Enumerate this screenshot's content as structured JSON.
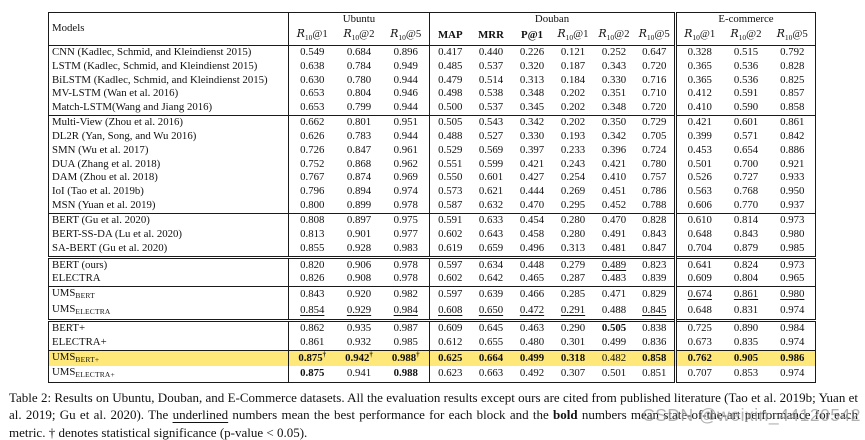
{
  "table": {
    "models_header": "Models",
    "dataset_groups": [
      {
        "label": "Ubuntu",
        "cols": 3
      },
      {
        "label": "Douban",
        "cols": 6
      },
      {
        "label": "E-commerce",
        "cols": 3
      }
    ],
    "subheaders": [
      {
        "base": "R",
        "sub": "10",
        "rest": "@1"
      },
      {
        "base": "R",
        "sub": "10",
        "rest": "@2"
      },
      {
        "base": "R",
        "sub": "10",
        "rest": "@5"
      },
      {
        "text": "MAP"
      },
      {
        "text": "MRR"
      },
      {
        "text": "P@1"
      },
      {
        "base": "R",
        "sub": "10",
        "rest": "@1"
      },
      {
        "base": "R",
        "sub": "10",
        "rest": "@2"
      },
      {
        "base": "R",
        "sub": "10",
        "rest": "@5"
      },
      {
        "base": "R",
        "sub": "10",
        "rest": "@1"
      },
      {
        "base": "R",
        "sub": "10",
        "rest": "@2"
      },
      {
        "base": "R",
        "sub": "10",
        "rest": "@5"
      }
    ],
    "blocks": [
      {
        "double_top": false,
        "rows": [
          {
            "model": "CNN (Kadlec, Schmid, and Kleindienst 2015)",
            "sub": "",
            "values": [
              "0.549",
              "0.684",
              "0.896",
              "0.417",
              "0.440",
              "0.226",
              "0.121",
              "0.252",
              "0.647",
              "0.328",
              "0.515",
              "0.792"
            ],
            "bold": [],
            "underline": [],
            "dagger": [],
            "highlight": false
          },
          {
            "model": "LSTM (Kadlec, Schmid, and Kleindienst 2015)",
            "sub": "",
            "values": [
              "0.638",
              "0.784",
              "0.949",
              "0.485",
              "0.537",
              "0.320",
              "0.187",
              "0.343",
              "0.720",
              "0.365",
              "0.536",
              "0.828"
            ],
            "bold": [],
            "underline": [],
            "dagger": [],
            "highlight": false
          },
          {
            "model": "BiLSTM (Kadlec, Schmid, and Kleindienst 2015)",
            "sub": "",
            "values": [
              "0.630",
              "0.780",
              "0.944",
              "0.479",
              "0.514",
              "0.313",
              "0.184",
              "0.330",
              "0.716",
              "0.365",
              "0.536",
              "0.825"
            ],
            "bold": [],
            "underline": [],
            "dagger": [],
            "highlight": false
          },
          {
            "model": "MV-LSTM (Wan et al. 2016)",
            "sub": "",
            "values": [
              "0.653",
              "0.804",
              "0.946",
              "0.498",
              "0.538",
              "0.348",
              "0.202",
              "0.351",
              "0.710",
              "0.412",
              "0.591",
              "0.857"
            ],
            "bold": [],
            "underline": [],
            "dagger": [],
            "highlight": false
          },
          {
            "model": "Match-LSTM(Wang and Jiang 2016)",
            "sub": "",
            "values": [
              "0.653",
              "0.799",
              "0.944",
              "0.500",
              "0.537",
              "0.345",
              "0.202",
              "0.348",
              "0.720",
              "0.410",
              "0.590",
              "0.858"
            ],
            "bold": [],
            "underline": [],
            "dagger": [],
            "highlight": false
          }
        ]
      },
      {
        "double_top": false,
        "rows": [
          {
            "model": "Multi-View (Zhou et al. 2016)",
            "sub": "",
            "values": [
              "0.662",
              "0.801",
              "0.951",
              "0.505",
              "0.543",
              "0.342",
              "0.202",
              "0.350",
              "0.729",
              "0.421",
              "0.601",
              "0.861"
            ],
            "bold": [],
            "underline": [],
            "dagger": [],
            "highlight": false
          },
          {
            "model": "DL2R (Yan, Song, and Wu 2016)",
            "sub": "",
            "values": [
              "0.626",
              "0.783",
              "0.944",
              "0.488",
              "0.527",
              "0.330",
              "0.193",
              "0.342",
              "0.705",
              "0.399",
              "0.571",
              "0.842"
            ],
            "bold": [],
            "underline": [],
            "dagger": [],
            "highlight": false
          },
          {
            "model": "SMN (Wu et al. 2017)",
            "sub": "",
            "values": [
              "0.726",
              "0.847",
              "0.961",
              "0.529",
              "0.569",
              "0.397",
              "0.233",
              "0.396",
              "0.724",
              "0.453",
              "0.654",
              "0.886"
            ],
            "bold": [],
            "underline": [],
            "dagger": [],
            "highlight": false
          },
          {
            "model": "DUA (Zhang et al. 2018)",
            "sub": "",
            "values": [
              "0.752",
              "0.868",
              "0.962",
              "0.551",
              "0.599",
              "0.421",
              "0.243",
              "0.421",
              "0.780",
              "0.501",
              "0.700",
              "0.921"
            ],
            "bold": [],
            "underline": [],
            "dagger": [],
            "highlight": false
          },
          {
            "model": "DAM (Zhou et al. 2018)",
            "sub": "",
            "values": [
              "0.767",
              "0.874",
              "0.969",
              "0.550",
              "0.601",
              "0.427",
              "0.254",
              "0.410",
              "0.757",
              "0.526",
              "0.727",
              "0.933"
            ],
            "bold": [],
            "underline": [],
            "dagger": [],
            "highlight": false
          },
          {
            "model": "IoI (Tao et al. 2019b)",
            "sub": "",
            "values": [
              "0.796",
              "0.894",
              "0.974",
              "0.573",
              "0.621",
              "0.444",
              "0.269",
              "0.451",
              "0.786",
              "0.563",
              "0.768",
              "0.950"
            ],
            "bold": [],
            "underline": [],
            "dagger": [],
            "highlight": false
          },
          {
            "model": "MSN (Yuan et al. 2019)",
            "sub": "",
            "values": [
              "0.800",
              "0.899",
              "0.978",
              "0.587",
              "0.632",
              "0.470",
              "0.295",
              "0.452",
              "0.788",
              "0.606",
              "0.770",
              "0.937"
            ],
            "bold": [],
            "underline": [],
            "dagger": [],
            "highlight": false
          }
        ]
      },
      {
        "double_top": false,
        "rows": [
          {
            "model": "BERT (Gu et al. 2020)",
            "sub": "",
            "values": [
              "0.808",
              "0.897",
              "0.975",
              "0.591",
              "0.633",
              "0.454",
              "0.280",
              "0.470",
              "0.828",
              "0.610",
              "0.814",
              "0.973"
            ],
            "bold": [],
            "underline": [],
            "dagger": [],
            "highlight": false
          },
          {
            "model": "BERT-SS-DA (Lu et al. 2020)",
            "sub": "",
            "values": [
              "0.813",
              "0.901",
              "0.977",
              "0.602",
              "0.643",
              "0.458",
              "0.280",
              "0.491",
              "0.843",
              "0.648",
              "0.843",
              "0.980"
            ],
            "bold": [],
            "underline": [],
            "dagger": [],
            "highlight": false
          },
          {
            "model": "SA-BERT (Gu et al. 2020)",
            "sub": "",
            "values": [
              "0.855",
              "0.928",
              "0.983",
              "0.619",
              "0.659",
              "0.496",
              "0.313",
              "0.481",
              "0.847",
              "0.704",
              "0.879",
              "0.985"
            ],
            "bold": [],
            "underline": [],
            "dagger": [],
            "highlight": false
          }
        ]
      },
      {
        "double_top": true,
        "rows": [
          {
            "model": "BERT (ours)",
            "sub": "",
            "values": [
              "0.820",
              "0.906",
              "0.978",
              "0.597",
              "0.634",
              "0.448",
              "0.279",
              "0.489",
              "0.823",
              "0.641",
              "0.824",
              "0.973"
            ],
            "bold": [],
            "underline": [
              7
            ],
            "dagger": [],
            "highlight": false
          },
          {
            "model": "ELECTRA",
            "sub": "",
            "values": [
              "0.826",
              "0.908",
              "0.978",
              "0.602",
              "0.642",
              "0.465",
              "0.287",
              "0.483",
              "0.839",
              "0.609",
              "0.804",
              "0.965"
            ],
            "bold": [],
            "underline": [],
            "dagger": [],
            "highlight": false
          }
        ]
      },
      {
        "double_top": false,
        "rows": [
          {
            "model": "UMS",
            "sub": "BERT",
            "values": [
              "0.843",
              "0.920",
              "0.982",
              "0.597",
              "0.639",
              "0.466",
              "0.285",
              "0.471",
              "0.829",
              "0.674",
              "0.861",
              "0.980"
            ],
            "bold": [],
            "underline": [
              9,
              10,
              11
            ],
            "dagger": [],
            "highlight": false
          },
          {
            "model": "UMS",
            "sub": "ELECTRA",
            "values": [
              "0.854",
              "0.929",
              "0.984",
              "0.608",
              "0.650",
              "0.472",
              "0.291",
              "0.488",
              "0.845",
              "0.648",
              "0.831",
              "0.974"
            ],
            "bold": [],
            "underline": [
              0,
              1,
              2,
              3,
              4,
              5,
              6,
              8
            ],
            "dagger": [],
            "highlight": false
          }
        ]
      },
      {
        "double_top": true,
        "rows": [
          {
            "model": "BERT+",
            "sub": "",
            "values": [
              "0.862",
              "0.935",
              "0.987",
              "0.609",
              "0.645",
              "0.463",
              "0.290",
              "0.505",
              "0.838",
              "0.725",
              "0.890",
              "0.984"
            ],
            "bold": [
              7
            ],
            "underline": [],
            "dagger": [],
            "highlight": false
          },
          {
            "model": "ELECTRA+",
            "sub": "",
            "values": [
              "0.861",
              "0.932",
              "0.985",
              "0.612",
              "0.655",
              "0.480",
              "0.301",
              "0.499",
              "0.836",
              "0.673",
              "0.835",
              "0.974"
            ],
            "bold": [],
            "underline": [],
            "dagger": [],
            "highlight": false
          }
        ]
      },
      {
        "double_top": false,
        "rows": [
          {
            "model": "UMS",
            "sub": "BERT+",
            "values": [
              "0.875",
              "0.942",
              "0.988",
              "0.625",
              "0.664",
              "0.499",
              "0.318",
              "0.482",
              "0.858",
              "0.762",
              "0.905",
              "0.986"
            ],
            "bold": [
              0,
              1,
              2,
              3,
              4,
              5,
              6,
              8,
              9,
              10,
              11
            ],
            "underline": [],
            "dagger": [
              0,
              1,
              2
            ],
            "highlight": true
          },
          {
            "model": "UMS",
            "sub": "ELECTRA+",
            "values": [
              "0.875",
              "0.941",
              "0.988",
              "0.623",
              "0.663",
              "0.492",
              "0.307",
              "0.501",
              "0.851",
              "0.707",
              "0.853",
              "0.974"
            ],
            "bold": [
              0,
              2
            ],
            "underline": [],
            "dagger": [],
            "highlight": false
          }
        ]
      }
    ]
  },
  "caption": {
    "segments": [
      {
        "text": "Table 2: Results on Ubuntu, Douban, and E-Commerce datasets. All the evaluation results except ours are cited from published literature (Tao et al. 2019b; Yuan et al. 2019; Gu et al. 2020). The ",
        "style": "normal"
      },
      {
        "text": "underlined",
        "style": "underline"
      },
      {
        "text": " numbers mean the best performance for each block and the ",
        "style": "normal"
      },
      {
        "text": "bold",
        "style": "bold"
      },
      {
        "text": " numbers mean state-of-the-art performance for each metric. † denotes statistical significance (p-value < 0.05).",
        "style": "normal"
      }
    ]
  },
  "watermark": {
    "text": "CSDN @weixin_44120542"
  },
  "colors": {
    "highlight": "#ffe87a",
    "rule": "#1a1a1a",
    "watermark": "#9e9e9e"
  }
}
